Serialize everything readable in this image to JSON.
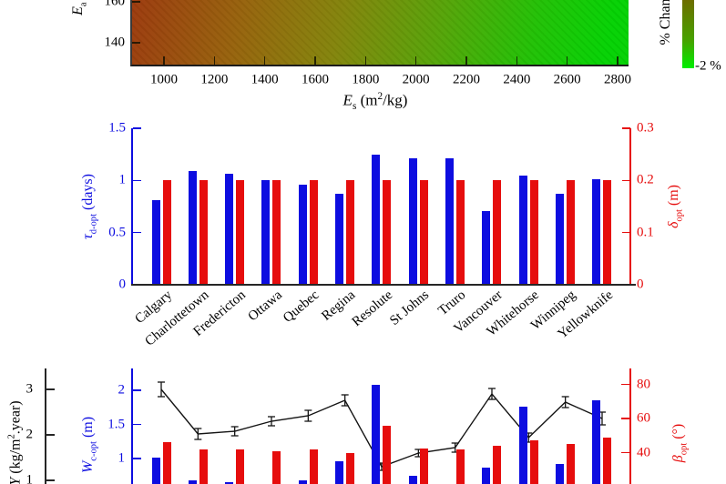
{
  "chart_data": [
    {
      "type": "heatmap",
      "xlabel": "E_s (m^2/kg)",
      "ylabel_visible": "E_a (",
      "x_ticks": [
        1000,
        1200,
        1400,
        1600,
        1800,
        2000,
        2200,
        2400,
        2600,
        2800
      ],
      "y_ticks": [
        160,
        140
      ],
      "x_range_visible": [
        865,
        2845
      ],
      "y_range_visible": [
        129,
        161
      ],
      "gradient_stops": [
        "#9c3a0e",
        "#97630c",
        "#83850b",
        "#55a508",
        "#22c105",
        "#04d203"
      ],
      "colorbar": {
        "label_visible": "% Chan",
        "bottom_tick_label": "-2 %",
        "top_color": "#6d6d00",
        "bottom_color": "#00ef00"
      }
    },
    {
      "type": "bar",
      "categories": [
        "Calgary",
        "Charlottetown",
        "Fredericton",
        "Ottawa",
        "Quebec",
        "Regina",
        "Resolute",
        "St Johns",
        "Truro",
        "Vancouver",
        "Whitehorse",
        "Winnipeg",
        "Yellowknife"
      ],
      "series": [
        {
          "name": "tau_d-opt (days)",
          "axis": "left",
          "color": "#0d0de0",
          "values": [
            0.81,
            1.09,
            1.06,
            1.0,
            0.96,
            0.87,
            1.25,
            1.21,
            1.21,
            0.71,
            1.05,
            0.87,
            1.01
          ]
        },
        {
          "name": "delta_opt (m)",
          "axis": "right",
          "color": "#e60d0d",
          "values": [
            0.2,
            0.2,
            0.2,
            0.2,
            0.2,
            0.2,
            0.2,
            0.2,
            0.2,
            0.2,
            0.2,
            0.2,
            0.2
          ]
        }
      ],
      "left_axis": {
        "label": "tau_d-opt (days)",
        "ticks": [
          0,
          0.5,
          1,
          1.5
        ],
        "range": [
          0,
          1.5
        ]
      },
      "right_axis": {
        "label": "delta_opt (m)",
        "ticks": [
          0,
          0.1,
          0.2,
          0.3
        ],
        "range": [
          0,
          0.3
        ]
      },
      "legend": "none",
      "grid": false
    },
    {
      "type": "bar+line",
      "categories": [
        "Calgary",
        "Charlottetown",
        "Fredericton",
        "Ottawa",
        "Quebec",
        "Regina",
        "Resolute",
        "St Johns",
        "Truro",
        "Vancouver",
        "Whitehorse",
        "Winnipeg",
        "Yellowknife"
      ],
      "series": [
        {
          "name": "W_c-opt (m)",
          "render": "bar",
          "axis": "inner-left",
          "color": "#0d0de0",
          "values": [
            1.01,
            0.68,
            0.65,
            0.55,
            0.68,
            0.96,
            2.08,
            0.75,
            0.55,
            0.87,
            1.76,
            0.92,
            1.85
          ]
        },
        {
          "name": "beta_opt (deg)",
          "render": "bar",
          "axis": "right",
          "color": "#e60d0d",
          "values": [
            46,
            42,
            42,
            41,
            42,
            40,
            56,
            42.5,
            42,
            44,
            47,
            45,
            49
          ]
        },
        {
          "name": "(kg/m^2.year)",
          "render": "line+errorbars",
          "axis": "outer-left",
          "color": "#111111",
          "values": [
            3.0,
            2.02,
            2.08,
            2.3,
            2.42,
            2.76,
            1.3,
            1.6,
            1.72,
            2.9,
            1.94,
            2.72,
            2.36
          ],
          "errors": [
            0.16,
            0.12,
            0.1,
            0.1,
            0.12,
            0.12,
            0.08,
            0.08,
            0.1,
            0.12,
            0.1,
            0.12,
            0.14
          ]
        }
      ],
      "outer_left_axis": {
        "label_visible": "(kg/m^2.year)",
        "ticks": [
          3,
          2,
          1
        ]
      },
      "inner_left_axis": {
        "label": "W_c-opt (m)",
        "ticks": [
          2,
          1.5,
          1
        ]
      },
      "right_axis": {
        "label": "beta_opt (deg)",
        "ticks": [
          80,
          60,
          40
        ]
      },
      "legend": "none",
      "grid": false
    }
  ],
  "labels": {
    "ea": {
      "sym": "E",
      "sub": "a",
      "rest": " ("
    },
    "es": {
      "sym": "E",
      "sub": "s",
      "pre": " (m",
      "sup": "2",
      "post": "/kg)"
    },
    "tau": {
      "sym": "τ",
      "sub": "d-opt",
      "rest": " (days)"
    },
    "delta": {
      "sym": "δ",
      "sub": "opt",
      "rest": " (m)"
    },
    "w": {
      "sym": "W",
      "sub": "c-opt",
      "rest": " (m)"
    },
    "beta": {
      "sym": "β",
      "sub": "opt",
      "rest": " (°)"
    },
    "kg": {
      "sym_partial": "Y",
      "pre": " (kg/m",
      "sup": "2",
      "post": ".year)"
    },
    "cbar": "% Chan",
    "cbar_bottom": "-2 %"
  }
}
